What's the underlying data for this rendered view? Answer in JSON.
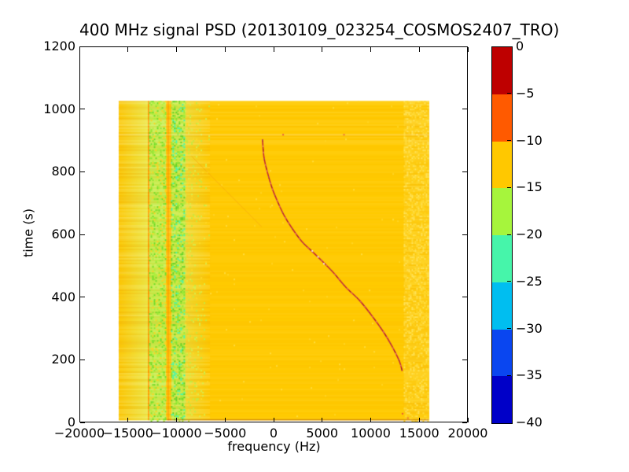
{
  "chart_data": {
    "type": "heatmap",
    "title": "400 MHz signal PSD (20130109_023254_COSMOS2407_TRO)",
    "xlabel": "frequency (Hz)",
    "ylabel": "time (s)",
    "xlim": [
      -20000,
      20000
    ],
    "ylim": [
      0,
      1200
    ],
    "grid": false,
    "x_ticks": {
      "values": [
        -20000,
        -15000,
        -10000,
        -5000,
        0,
        5000,
        10000,
        15000,
        20000
      ],
      "labels": [
        "−20000",
        "−15000",
        "−10000",
        "−5000",
        "0",
        "5000",
        "10000",
        "15000",
        "20000"
      ]
    },
    "y_ticks": {
      "values": [
        0,
        200,
        400,
        600,
        800,
        1000,
        1200
      ],
      "labels": [
        "0",
        "200",
        "400",
        "600",
        "800",
        "1000",
        "1200"
      ]
    },
    "colorbar": {
      "position": "right",
      "tick_values": [
        0,
        -5,
        -10,
        -15,
        -20,
        -25,
        -30,
        -35,
        -40
      ],
      "tick_labels": [
        "0",
        "−5",
        "−10",
        "−15",
        "−20",
        "−25",
        "−30",
        "−35",
        "−40"
      ],
      "segments": [
        {
          "from": 0,
          "to": -5,
          "color": "#BE0000"
        },
        {
          "from": -5,
          "to": -10,
          "color": "#FF5A00"
        },
        {
          "from": -10,
          "to": -15,
          "color": "#FFC800"
        },
        {
          "from": -15,
          "to": -20,
          "color": "#A6F53C"
        },
        {
          "from": -20,
          "to": -25,
          "color": "#46F5AA"
        },
        {
          "from": -25,
          "to": -30,
          "color": "#00BEF0"
        },
        {
          "from": -30,
          "to": -35,
          "color": "#0A46F0"
        },
        {
          "from": -35,
          "to": -40,
          "color": "#0000C8"
        }
      ]
    },
    "heatmap": {
      "freq_extent": [
        -16050,
        16050
      ],
      "time_extent": [
        4,
        1028
      ],
      "background_level_db": "-10 to -15",
      "background_color": "#FFCA00",
      "bands": [
        {
          "f0": -16050,
          "f1": -13060,
          "kind": "gradient",
          "from": "#FCC906",
          "to": "#EDE845",
          "name": "left-gradient"
        },
        {
          "f0": -13060,
          "f1": -12880,
          "kind": "solid",
          "color": "#FF9F04",
          "name": "orange-line"
        },
        {
          "f0": -12880,
          "f1": -11210,
          "kind": "solid",
          "color": "#C8EE4E",
          "name": "speckle-col-1-base"
        },
        {
          "f0": -11210,
          "f1": -10620,
          "kind": "solid",
          "color": "#FEC303",
          "name": "amber-gap"
        },
        {
          "f0": -10620,
          "f1": -9180,
          "kind": "solid",
          "color": "#CEEB49",
          "name": "speckle-col-2-base"
        },
        {
          "f0": -9180,
          "f1": -6580,
          "kind": "gradient",
          "from": "#EEDC33",
          "to": "#FFCA00",
          "name": "fade-to-main"
        },
        {
          "f0": -6580,
          "f1": 13450,
          "kind": "solid",
          "color": "#FFCA00",
          "name": "main-field"
        },
        {
          "f0": 13450,
          "f1": 16050,
          "kind": "solid",
          "color": "#FECD0D",
          "name": "right-texture-base"
        }
      ],
      "speckle_zones": [
        {
          "f0": -12880,
          "f1": -11210,
          "density": 0.4,
          "fade": false,
          "colors": [
            "#8FE431",
            "#A9F03C",
            "#6EDC28",
            "#BFEA40",
            "#FFD21E"
          ]
        },
        {
          "f0": -10620,
          "f1": -9180,
          "density": 0.45,
          "fade": false,
          "colors": [
            "#7EDF2C",
            "#97EC35",
            "#5FD026",
            "#B5EA3E",
            "#46F5AA"
          ]
        },
        {
          "f0": -9180,
          "f1": -6580,
          "density": 0.2,
          "fade": true,
          "colors": [
            "#C3EA41",
            "#D8EE4C",
            "#FFD825"
          ]
        },
        {
          "f0": 13450,
          "f1": 16050,
          "density": 0.4,
          "fade": false,
          "colors": [
            "#FFD524",
            "#FFDC3C",
            "#FFE35A"
          ]
        },
        {
          "f0": -6580,
          "f1": 13450,
          "density": 0.004,
          "fade": false,
          "colors": [
            "#FFD524",
            "#FFDC3C"
          ]
        }
      ],
      "row_stripes": {
        "step": 2,
        "base_alpha": 0.05,
        "top_region_t_min": 890,
        "top_alpha": 0.1,
        "left_f_max": -6580,
        "left_alpha": 0.14,
        "right_f_min": 13450,
        "right_alpha": 0.1,
        "light": "#FFFFFF",
        "dark": "#E88A00"
      },
      "vlines": [
        {
          "f": -10900,
          "color": "rgba(255,128,0,0.5)",
          "w": 1.4
        }
      ],
      "ghost_line": {
        "from": [
          -8500,
          851
        ],
        "to": [
          -1250,
          625
        ],
        "color": "rgba(246,158,16,0.55)"
      },
      "light_row": {
        "t": 922,
        "alpha": 0.22
      },
      "bottom_edge": {
        "color": "rgba(170,80,0,0.45)"
      },
      "artifacts": [
        {
          "f": 900,
          "t": 922,
          "color": "rgba(225,70,70,0.85)"
        },
        {
          "f": 7200,
          "t": 922,
          "color": "rgba(225,70,70,0.7)"
        },
        {
          "f": 13250,
          "t": 28,
          "color": "rgba(230,80,60,0.9)"
        },
        {
          "f": 13800,
          "t": 14,
          "color": "rgba(230,90,60,0.8)"
        }
      ]
    },
    "doppler_track": {
      "color": "#C42A32",
      "points": [
        [
          -1150,
          905
        ],
        [
          -1000,
          848
        ],
        [
          -650,
          800
        ],
        [
          -150,
          748
        ],
        [
          400,
          706
        ],
        [
          1100,
          660
        ],
        [
          1900,
          620
        ],
        [
          2900,
          578
        ],
        [
          4000,
          545
        ],
        [
          5100,
          512
        ],
        [
          6200,
          477
        ],
        [
          7500,
          430
        ],
        [
          8900,
          388
        ],
        [
          10200,
          338
        ],
        [
          11350,
          288
        ],
        [
          12200,
          244
        ],
        [
          13000,
          194
        ],
        [
          13300,
          162
        ]
      ],
      "sparkle_color": "#F7E4E4",
      "sparkles": [
        {
          "f": 4600,
          "t": 528
        },
        {
          "f": 5200,
          "t": 506
        },
        {
          "f": 4000,
          "t": 547
        }
      ]
    }
  }
}
